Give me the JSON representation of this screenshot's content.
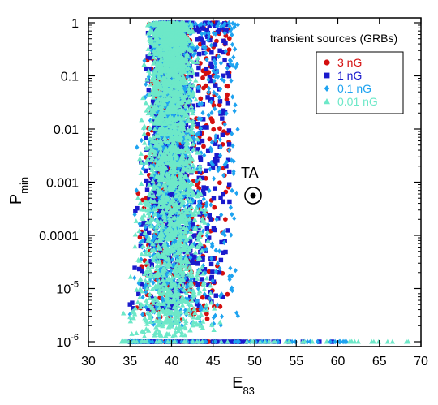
{
  "chart_data": {
    "type": "scatter",
    "xlabel": "E",
    "xlabel_sub": "83",
    "ylabel": "P",
    "ylabel_sub": "min",
    "xlim": [
      30,
      70
    ],
    "ylim": [
      1e-06,
      1
    ],
    "yscale": "log",
    "x_ticks": [
      {
        "value": 30,
        "label": "30"
      },
      {
        "value": 35,
        "label": "35"
      },
      {
        "value": 40,
        "label": "40"
      },
      {
        "value": 45,
        "label": "45"
      },
      {
        "value": 50,
        "label": "50"
      },
      {
        "value": 55,
        "label": "55"
      },
      {
        "value": 60,
        "label": "60"
      },
      {
        "value": 65,
        "label": "65"
      },
      {
        "value": 70,
        "label": "70"
      }
    ],
    "y_ticks": [
      {
        "value": 1,
        "label": "1",
        "sup": ""
      },
      {
        "value": 0.1,
        "label": "0.1",
        "sup": ""
      },
      {
        "value": 0.01,
        "label": "0.01",
        "sup": ""
      },
      {
        "value": 0.001,
        "label": "0.001",
        "sup": ""
      },
      {
        "value": 0.0001,
        "label": "0.0001",
        "sup": ""
      },
      {
        "value": 1e-05,
        "label": "10",
        "sup": "-5"
      },
      {
        "value": 1e-06,
        "label": "10",
        "sup": "-6"
      }
    ],
    "grid": false,
    "legend_title": "transient sources (GRBs)",
    "legend_placement": "top-right",
    "series": [
      {
        "name": "3 nG",
        "color": "#d40f0f",
        "marker": "circle",
        "x_range": [
          35,
          47
        ],
        "log_p_range": [
          -5.6,
          0
        ],
        "floor_x_range": [
          35,
          50
        ]
      },
      {
        "name": "1 nG",
        "color": "#1a1acc",
        "marker": "square",
        "x_range": [
          35,
          47
        ],
        "log_p_range": [
          -5.4,
          0
        ],
        "floor_x_range": [
          35,
          60
        ]
      },
      {
        "name": "0.1 nG",
        "color": "#1ea3f0",
        "marker": "diamond",
        "x_range": [
          35,
          48
        ],
        "log_p_range": [
          -5.7,
          0
        ],
        "floor_x_range": [
          35,
          62
        ]
      },
      {
        "name": "0.01 nG",
        "color": "#6de8c8",
        "marker": "triangle",
        "x_range": [
          34,
          46
        ],
        "log_p_range": [
          -5.9,
          0
        ],
        "floor_x_range": [
          34,
          68.5
        ]
      }
    ],
    "annotations": [
      {
        "text": "TA",
        "x": 50,
        "p": 0.0004,
        "marker": "sun-symbol"
      }
    ]
  }
}
